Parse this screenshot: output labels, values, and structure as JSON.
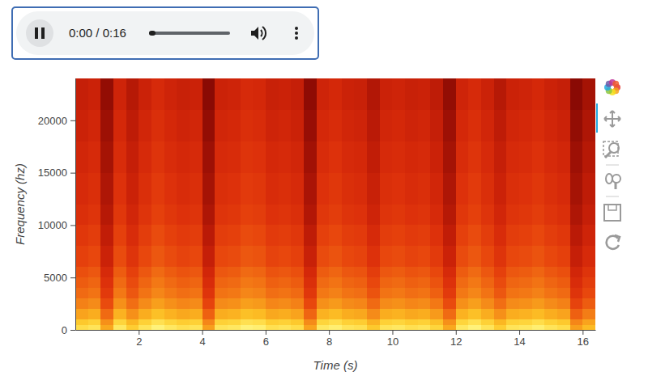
{
  "audio_player": {
    "time": "0:00 / 0:16"
  },
  "chart_data": {
    "type": "heatmap",
    "x_label": "Time (s)",
    "y_label": "Frequency (hz)",
    "xlim": [
      0,
      16.4
    ],
    "ylim": [
      0,
      24000
    ],
    "xticks": [
      2,
      4,
      6,
      8,
      10,
      12,
      14,
      16
    ],
    "yticks": [
      0,
      5000,
      10000,
      15000,
      20000
    ],
    "x_bins": [
      0,
      0.4,
      0.8,
      1.2,
      1.6,
      2,
      2.4,
      2.8,
      3.2,
      3.6,
      4,
      4.4,
      4.8,
      5.2,
      5.6,
      6,
      6.4,
      6.8,
      7.2,
      7.6,
      8,
      8.4,
      8.8,
      9.2,
      9.6,
      10,
      10.4,
      10.8,
      11.2,
      11.6,
      12,
      12.4,
      12.8,
      13.2,
      13.6,
      14,
      14.4,
      14.8,
      15.2,
      15.6,
      16,
      16.4
    ],
    "y_bins": [
      0,
      500,
      1000,
      2000,
      3000,
      4000,
      5000,
      6000,
      8000,
      10000,
      12000,
      15000,
      18000,
      21000,
      24000
    ],
    "z": [
      [
        -25,
        -23,
        -37,
        -22,
        -29,
        -23,
        -19,
        -22,
        -24,
        -23,
        -39,
        -23,
        -22,
        -19,
        -20,
        -24,
        -23,
        -25,
        -38,
        -22,
        -20,
        -23,
        -24,
        -30,
        -23,
        -22,
        -24,
        -23,
        -27,
        -37,
        -22,
        -19,
        -23,
        -29,
        -23,
        -22,
        -20,
        -23,
        -25,
        -39,
        -33
      ],
      [
        -30,
        -28,
        -42,
        -27,
        -34,
        -28,
        -24,
        -27,
        -29,
        -28,
        -44,
        -28,
        -27,
        -24,
        -25,
        -29,
        -28,
        -30,
        -43,
        -27,
        -25,
        -28,
        -29,
        -35,
        -28,
        -27,
        -29,
        -28,
        -32,
        -42,
        -27,
        -24,
        -28,
        -34,
        -28,
        -27,
        -25,
        -28,
        -30,
        -44,
        -38
      ],
      [
        -38,
        -36,
        -50,
        -35,
        -42,
        -36,
        -32,
        -35,
        -37,
        -36,
        -52,
        -36,
        -35,
        -32,
        -33,
        -37,
        -36,
        -38,
        -51,
        -35,
        -33,
        -36,
        -37,
        -43,
        -36,
        -35,
        -37,
        -36,
        -40,
        -50,
        -35,
        -32,
        -36,
        -42,
        -36,
        -35,
        -33,
        -36,
        -38,
        -52,
        -46
      ],
      [
        -45,
        -43,
        -57,
        -42,
        -49,
        -43,
        -39,
        -42,
        -44,
        -43,
        -59,
        -43,
        -42,
        -39,
        -40,
        -44,
        -43,
        -45,
        -58,
        -42,
        -40,
        -43,
        -44,
        -50,
        -43,
        -42,
        -44,
        -43,
        -47,
        -57,
        -42,
        -39,
        -43,
        -49,
        -43,
        -42,
        -40,
        -43,
        -45,
        -59,
        -53
      ],
      [
        -50,
        -48,
        -62,
        -47,
        -54,
        -48,
        -44,
        -47,
        -49,
        -48,
        -64,
        -48,
        -47,
        -44,
        -45,
        -49,
        -48,
        -50,
        -63,
        -47,
        -45,
        -48,
        -49,
        -55,
        -48,
        -47,
        -49,
        -48,
        -52,
        -62,
        -47,
        -44,
        -48,
        -54,
        -48,
        -47,
        -45,
        -48,
        -50,
        -64,
        -58
      ],
      [
        -53,
        -51,
        -65,
        -50,
        -57,
        -51,
        -47,
        -50,
        -52,
        -51,
        -67,
        -51,
        -50,
        -47,
        -48,
        -52,
        -51,
        -53,
        -66,
        -50,
        -48,
        -51,
        -52,
        -58,
        -51,
        -50,
        -52,
        -51,
        -55,
        -65,
        -50,
        -47,
        -51,
        -57,
        -51,
        -50,
        -48,
        -51,
        -53,
        -67,
        -61
      ],
      [
        -56,
        -54,
        -68,
        -53,
        -60,
        -54,
        -50,
        -53,
        -55,
        -54,
        -70,
        -54,
        -53,
        -50,
        -51,
        -55,
        -54,
        -56,
        -69,
        -53,
        -51,
        -54,
        -55,
        -61,
        -54,
        -53,
        -55,
        -54,
        -58,
        -68,
        -53,
        -50,
        -54,
        -60,
        -54,
        -53,
        -51,
        -54,
        -56,
        -70,
        -64
      ],
      [
        -60,
        -58,
        -72,
        -57,
        -64,
        -58,
        -54,
        -57,
        -59,
        -58,
        -74,
        -58,
        -57,
        -54,
        -55,
        -59,
        -58,
        -60,
        -73,
        -57,
        -55,
        -58,
        -59,
        -65,
        -58,
        -57,
        -59,
        -58,
        -62,
        -72,
        -57,
        -54,
        -58,
        -64,
        -58,
        -57,
        -55,
        -58,
        -60,
        -74,
        -68
      ],
      [
        -63,
        -61,
        -75,
        -60,
        -67,
        -61,
        -57,
        -60,
        -62,
        -61,
        -77,
        -61,
        -60,
        -57,
        -58,
        -62,
        -61,
        -63,
        -76,
        -60,
        -58,
        -61,
        -62,
        -68,
        -61,
        -60,
        -62,
        -61,
        -65,
        -75,
        -60,
        -57,
        -61,
        -67,
        -61,
        -60,
        -58,
        -61,
        -63,
        -77,
        -71
      ],
      [
        -66,
        -64,
        -78,
        -63,
        -70,
        -64,
        -60,
        -63,
        -65,
        -64,
        -80,
        -64,
        -63,
        -60,
        -61,
        -65,
        -64,
        -66,
        -79,
        -63,
        -61,
        -64,
        -65,
        -71,
        -64,
        -63,
        -65,
        -64,
        -68,
        -78,
        -63,
        -60,
        -64,
        -70,
        -64,
        -63,
        -61,
        -64,
        -66,
        -80,
        -74
      ],
      [
        -68,
        -66,
        -80,
        -65,
        -72,
        -66,
        -62,
        -65,
        -67,
        -66,
        -82,
        -66,
        -65,
        -62,
        -63,
        -67,
        -66,
        -68,
        -81,
        -65,
        -63,
        -66,
        -67,
        -73,
        -66,
        -65,
        -67,
        -66,
        -70,
        -80,
        -65,
        -62,
        -66,
        -72,
        -66,
        -65,
        -63,
        -66,
        -68,
        -82,
        -76
      ],
      [
        -70,
        -68,
        -82,
        -67,
        -74,
        -68,
        -64,
        -67,
        -69,
        -68,
        -84,
        -68,
        -67,
        -64,
        -65,
        -69,
        -68,
        -70,
        -83,
        -67,
        -65,
        -68,
        -69,
        -75,
        -68,
        -67,
        -69,
        -68,
        -72,
        -82,
        -67,
        -64,
        -68,
        -74,
        -68,
        -67,
        -65,
        -68,
        -70,
        -84,
        -78
      ],
      [
        -72,
        -70,
        -84,
        -69,
        -76,
        -70,
        -66,
        -69,
        -71,
        -70,
        -86,
        -70,
        -69,
        -66,
        -67,
        -71,
        -70,
        -72,
        -85,
        -69,
        -67,
        -70,
        -71,
        -77,
        -70,
        -69,
        -71,
        -70,
        -74,
        -84,
        -69,
        -66,
        -70,
        -76,
        -70,
        -69,
        -67,
        -70,
        -72,
        -86,
        -80
      ],
      [
        -74,
        -72,
        -86,
        -71,
        -78,
        -72,
        -68,
        -71,
        -73,
        -72,
        -88,
        -72,
        -71,
        -68,
        -69,
        -73,
        -72,
        -74,
        -87,
        -71,
        -69,
        -72,
        -73,
        -79,
        -72,
        -71,
        -73,
        -72,
        -76,
        -86,
        -71,
        -68,
        -72,
        -78,
        -72,
        -71,
        -69,
        -72,
        -74,
        -88,
        -82
      ]
    ]
  }
}
